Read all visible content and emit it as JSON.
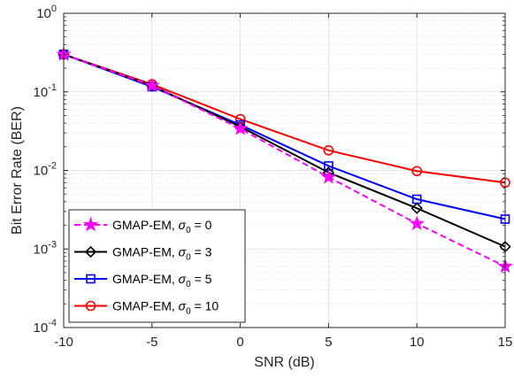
{
  "chart_data": {
    "type": "line",
    "title": "",
    "xlabel": "SNR (dB)",
    "ylabel": "Bit Error Rate (BER)",
    "x": [
      -10,
      -5,
      0,
      5,
      10,
      15
    ],
    "xlim": [
      -10,
      15
    ],
    "ylim": [
      0.0001,
      1
    ],
    "yscale": "log",
    "grid": true,
    "minor_grid": true,
    "legend_position": "bottom-left",
    "x_ticks": [
      {
        "value": -10,
        "label": "-10"
      },
      {
        "value": -5,
        "label": "-5"
      },
      {
        "value": 0,
        "label": "0"
      },
      {
        "value": 5,
        "label": "5"
      },
      {
        "value": 10,
        "label": "10"
      },
      {
        "value": 15,
        "label": "15"
      }
    ],
    "y_ticks": [
      {
        "value": 0.0001,
        "base": "10",
        "exp": "-4"
      },
      {
        "value": 0.001,
        "base": "10",
        "exp": "-3"
      },
      {
        "value": 0.01,
        "base": "10",
        "exp": "-2"
      },
      {
        "value": 0.1,
        "base": "10",
        "exp": "-1"
      },
      {
        "value": 1,
        "base": "10",
        "exp": "0"
      }
    ],
    "series": [
      {
        "name_prefix": "GMAP-EM, ",
        "name_symbol": "σ",
        "name_sub": "0",
        "name_suffix": " = 0",
        "values": [
          0.3,
          0.12,
          0.034,
          0.0082,
          0.0021,
          0.0006
        ],
        "color": "#ff00ff",
        "dash": "dashed",
        "marker": "star"
      },
      {
        "name_prefix": "GMAP-EM, ",
        "name_symbol": "σ",
        "name_sub": "0",
        "name_suffix": " = 3",
        "values": [
          0.3,
          0.12,
          0.036,
          0.0094,
          0.0033,
          0.00107
        ],
        "color": "#000000",
        "dash": "solid",
        "marker": "diamond"
      },
      {
        "name_prefix": "GMAP-EM, ",
        "name_symbol": "σ",
        "name_sub": "0",
        "name_suffix": " = 5",
        "values": [
          0.3,
          0.116,
          0.038,
          0.0114,
          0.0043,
          0.0024
        ],
        "color": "#0000ff",
        "dash": "solid",
        "marker": "square"
      },
      {
        "name_prefix": "GMAP-EM, ",
        "name_symbol": "σ",
        "name_sub": "0",
        "name_suffix": " = 10",
        "values": [
          0.3,
          0.125,
          0.045,
          0.018,
          0.0098,
          0.007
        ],
        "color": "#ff0000",
        "dash": "solid",
        "marker": "circle"
      }
    ]
  }
}
